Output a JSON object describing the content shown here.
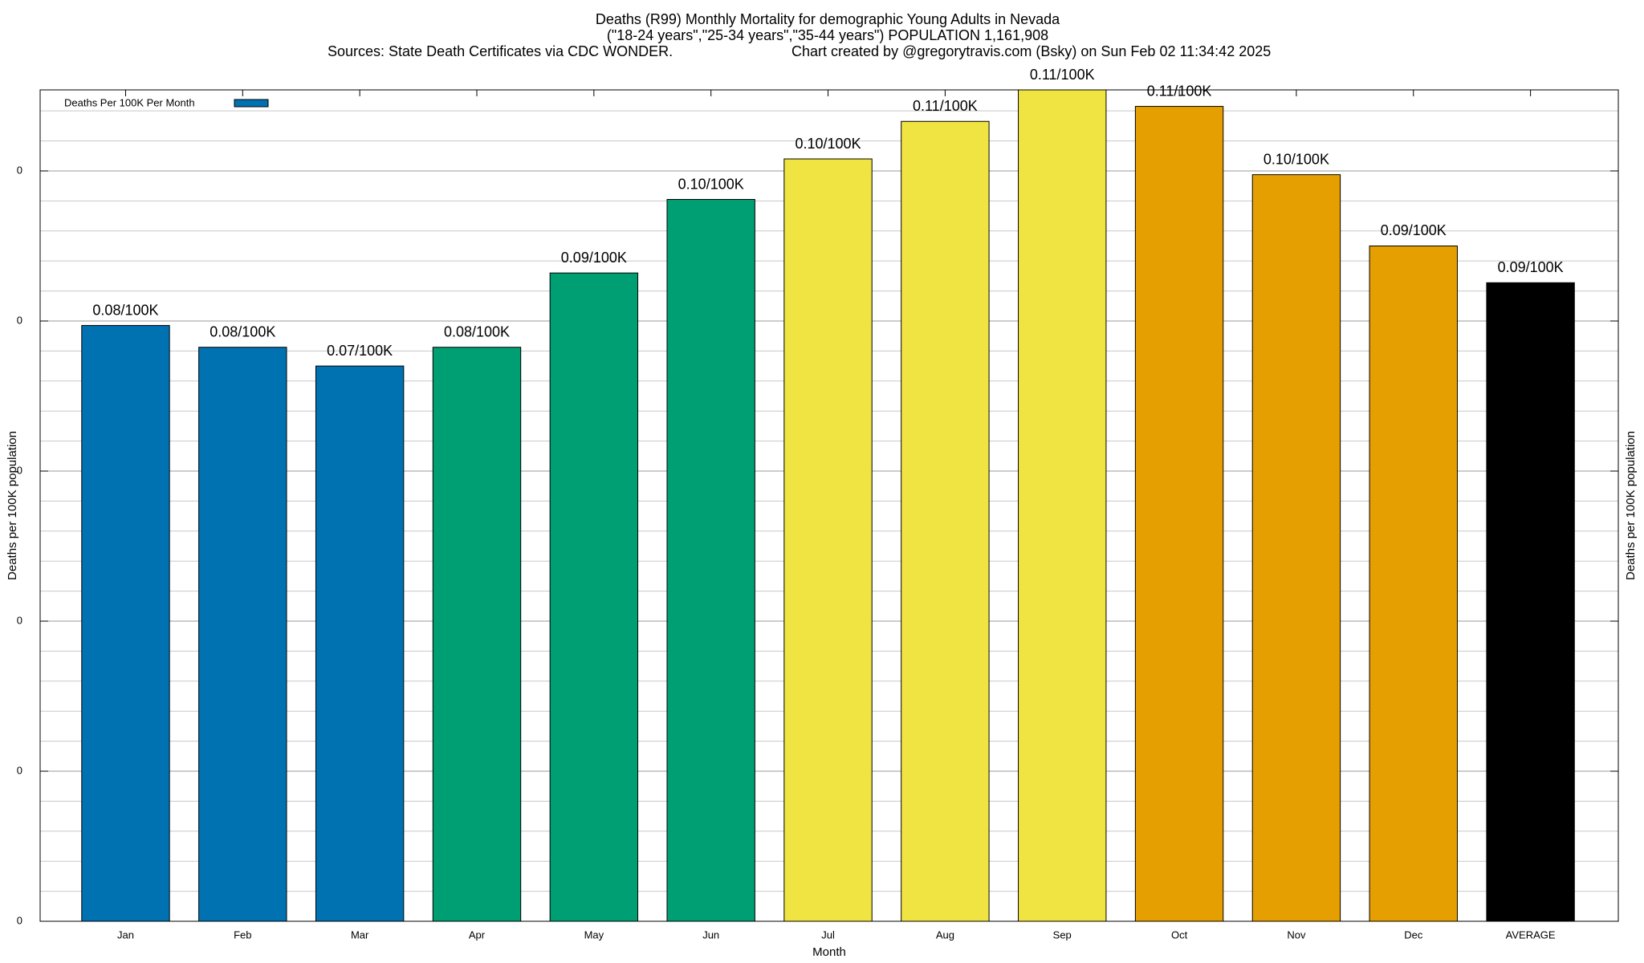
{
  "chart_data": {
    "type": "bar",
    "title": "Deaths (R99) Monthly Mortality for demographic Young Adults in Nevada",
    "subtitle": "(\"18-24 years\",\"25-34 years\",\"35-44 years\") POPULATION 1,161,908",
    "sources": "Sources: State Death Certificates via CDC WONDER.",
    "credit": "Chart created by @gregorytravis.com (Bsky) on Sun Feb 02 11:34:42 2025",
    "xlabel": "Month",
    "ylabel": "Deaths per 100K population",
    "y2label": "Deaths per 100K population",
    "categories": [
      "Jan",
      "Feb",
      "Mar",
      "Apr",
      "May",
      "Jun",
      "Jul",
      "Aug",
      "Sep",
      "Oct",
      "Nov",
      "Dec",
      "AVERAGE"
    ],
    "series": [
      {
        "name": "Deaths Per 100K Per Month",
        "color": "#0072b2",
        "colors": [
          "#0072b2",
          "#0072b2",
          "#0072b2",
          "#009e73",
          "#009e73",
          "#009e73",
          "#f0e442",
          "#f0e442",
          "#f0e442",
          "#e69f00",
          "#e69f00",
          "#e69f00",
          "#000000"
        ],
        "values": [
          0.0794,
          0.0765,
          0.074,
          0.0765,
          0.0864,
          0.0962,
          0.1016,
          0.1066,
          0.1108,
          0.1086,
          0.0995,
          0.09,
          0.0851
        ],
        "value_labels": [
          "0.08/100K",
          "0.08/100K",
          "0.07/100K",
          "0.08/100K",
          "0.09/100K",
          "0.10/100K",
          "0.10/100K",
          "0.11/100K",
          "0.11/100K",
          "0.11/100K",
          "0.10/100K",
          "0.09/100K",
          "0.09/100K"
        ]
      }
    ],
    "ylim": [
      0,
      0.1108
    ],
    "yticks": [
      0,
      {
        "value": 0.02,
        "label": "0"
      },
      {
        "value": 0.04,
        "label": "0"
      },
      {
        "value": 0.06,
        "label": "0"
      },
      {
        "value": 0.08,
        "label": "0"
      },
      {
        "value": 0.1,
        "label": "0"
      }
    ],
    "y_minor_divisions": 5,
    "grid": true,
    "legend": "top-left"
  }
}
